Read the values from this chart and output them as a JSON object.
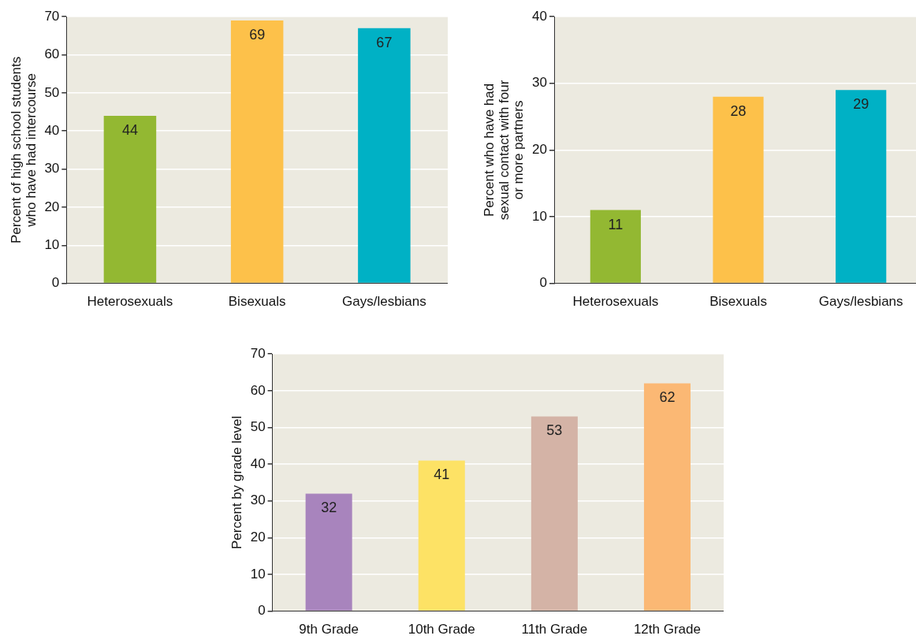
{
  "chart_data": [
    {
      "type": "bar",
      "ylabel": "Percent of high school students\nwho have had intercourse",
      "categories": [
        "Heterosexuals",
        "Bisexuals",
        "Gays/lesbians"
      ],
      "values": [
        44,
        69,
        67
      ],
      "colors": [
        "#93b832",
        "#fdc14a",
        "#00b1c5"
      ],
      "ylim": [
        0,
        70
      ],
      "yticks": [
        0,
        10,
        20,
        30,
        40,
        50,
        60,
        70
      ],
      "grid": "y",
      "data_labels": true,
      "legend": false
    },
    {
      "type": "bar",
      "ylabel": "Percent who have had\nsexual contact with four\nor more partners",
      "categories": [
        "Heterosexuals",
        "Bisexuals",
        "Gays/lesbians"
      ],
      "values": [
        11,
        28,
        29
      ],
      "colors": [
        "#93b832",
        "#fdc14a",
        "#00b1c5"
      ],
      "ylim": [
        0,
        40
      ],
      "yticks": [
        0,
        10,
        20,
        30,
        40
      ],
      "grid": "y",
      "data_labels": true,
      "legend": false
    },
    {
      "type": "bar",
      "ylabel": "Percent by grade level",
      "categories": [
        "9th Grade",
        "10th Grade",
        "11th Grade",
        "12th Grade"
      ],
      "values": [
        32,
        41,
        53,
        62
      ],
      "colors": [
        "#a884bd",
        "#fde265",
        "#d4b3a6",
        "#fbb874"
      ],
      "ylim": [
        0,
        70
      ],
      "yticks": [
        0,
        10,
        20,
        30,
        40,
        50,
        60,
        70
      ],
      "grid": "y",
      "data_labels": true,
      "legend": false
    }
  ]
}
